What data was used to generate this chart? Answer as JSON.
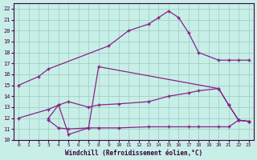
{
  "xlabel": "Windchill (Refroidissement éolien,°C)",
  "background_color": "#c8eee8",
  "grid_color": "#99ccbb",
  "line_color": "#882288",
  "xlim": [
    -0.5,
    23.5
  ],
  "ylim": [
    10,
    22.5
  ],
  "xticks": [
    0,
    1,
    2,
    3,
    4,
    5,
    6,
    7,
    8,
    9,
    10,
    11,
    12,
    13,
    14,
    15,
    16,
    17,
    18,
    19,
    20,
    21,
    22,
    23
  ],
  "yticks": [
    10,
    11,
    12,
    13,
    14,
    15,
    16,
    17,
    18,
    19,
    20,
    21,
    22
  ],
  "line1_x": [
    0,
    2,
    3,
    9,
    11,
    13,
    14,
    15,
    16,
    17,
    18,
    20,
    21,
    22,
    23
  ],
  "line1_y": [
    15,
    15.8,
    16.5,
    18.6,
    20.0,
    20.6,
    21.2,
    21.8,
    21.2,
    19.8,
    18.0,
    17.3,
    17.3,
    17.3,
    17.3
  ],
  "line2_x": [
    0,
    3,
    4,
    5,
    7,
    8,
    10,
    13,
    15,
    17,
    18,
    20,
    21,
    22,
    23
  ],
  "line2_y": [
    12.0,
    12.8,
    13.2,
    13.5,
    13.0,
    13.2,
    13.3,
    13.5,
    14.0,
    14.3,
    14.5,
    14.7,
    13.2,
    11.8,
    11.7
  ],
  "line3_x": [
    3,
    4,
    5,
    7,
    8,
    20,
    21,
    22,
    23
  ],
  "line3_y": [
    12.0,
    13.2,
    10.5,
    11.1,
    16.7,
    14.7,
    13.2,
    11.8,
    11.7
  ],
  "line4_x": [
    3,
    4,
    5,
    7,
    8,
    10,
    13,
    15,
    17,
    18,
    20,
    21,
    22,
    23
  ],
  "line4_y": [
    11.8,
    11.1,
    11.0,
    11.1,
    11.1,
    11.1,
    11.2,
    11.2,
    11.2,
    11.2,
    11.2,
    11.2,
    11.8,
    11.7
  ]
}
